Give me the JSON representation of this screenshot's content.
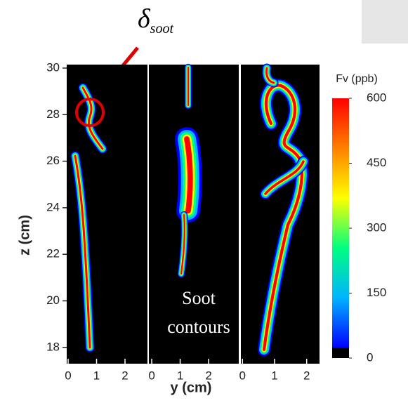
{
  "chart_data": {
    "type": "contour",
    "annotation": "δ",
    "annotation_sub": "soot",
    "overlay_text": [
      "Soot",
      "contours"
    ],
    "xlabel": "y (cm)",
    "ylabel": "z (cm)",
    "ylim": [
      17.3,
      30.15
    ],
    "yticks": [
      18,
      20,
      22,
      24,
      26,
      28,
      30
    ],
    "panels": [
      {
        "xlim": [
          -0.05,
          2.79
        ],
        "xticks": [
          0,
          1,
          2
        ]
      },
      {
        "xlim": [
          -0.1,
          3.06
        ],
        "xticks": [
          0,
          1,
          2
        ]
      },
      {
        "xlim": [
          -0.05,
          2.4
        ],
        "xticks": [
          0,
          1,
          2
        ]
      }
    ],
    "colorbar": {
      "title": "Fv (ppb)",
      "lim": [
        0,
        600
      ],
      "ticks": [
        0,
        150,
        300,
        450,
        600
      ],
      "colors": [
        "#000000",
        "#0000ff",
        "#00b4ff",
        "#00ff80",
        "#ffff00",
        "#ff8000",
        "#ff0000"
      ]
    }
  }
}
